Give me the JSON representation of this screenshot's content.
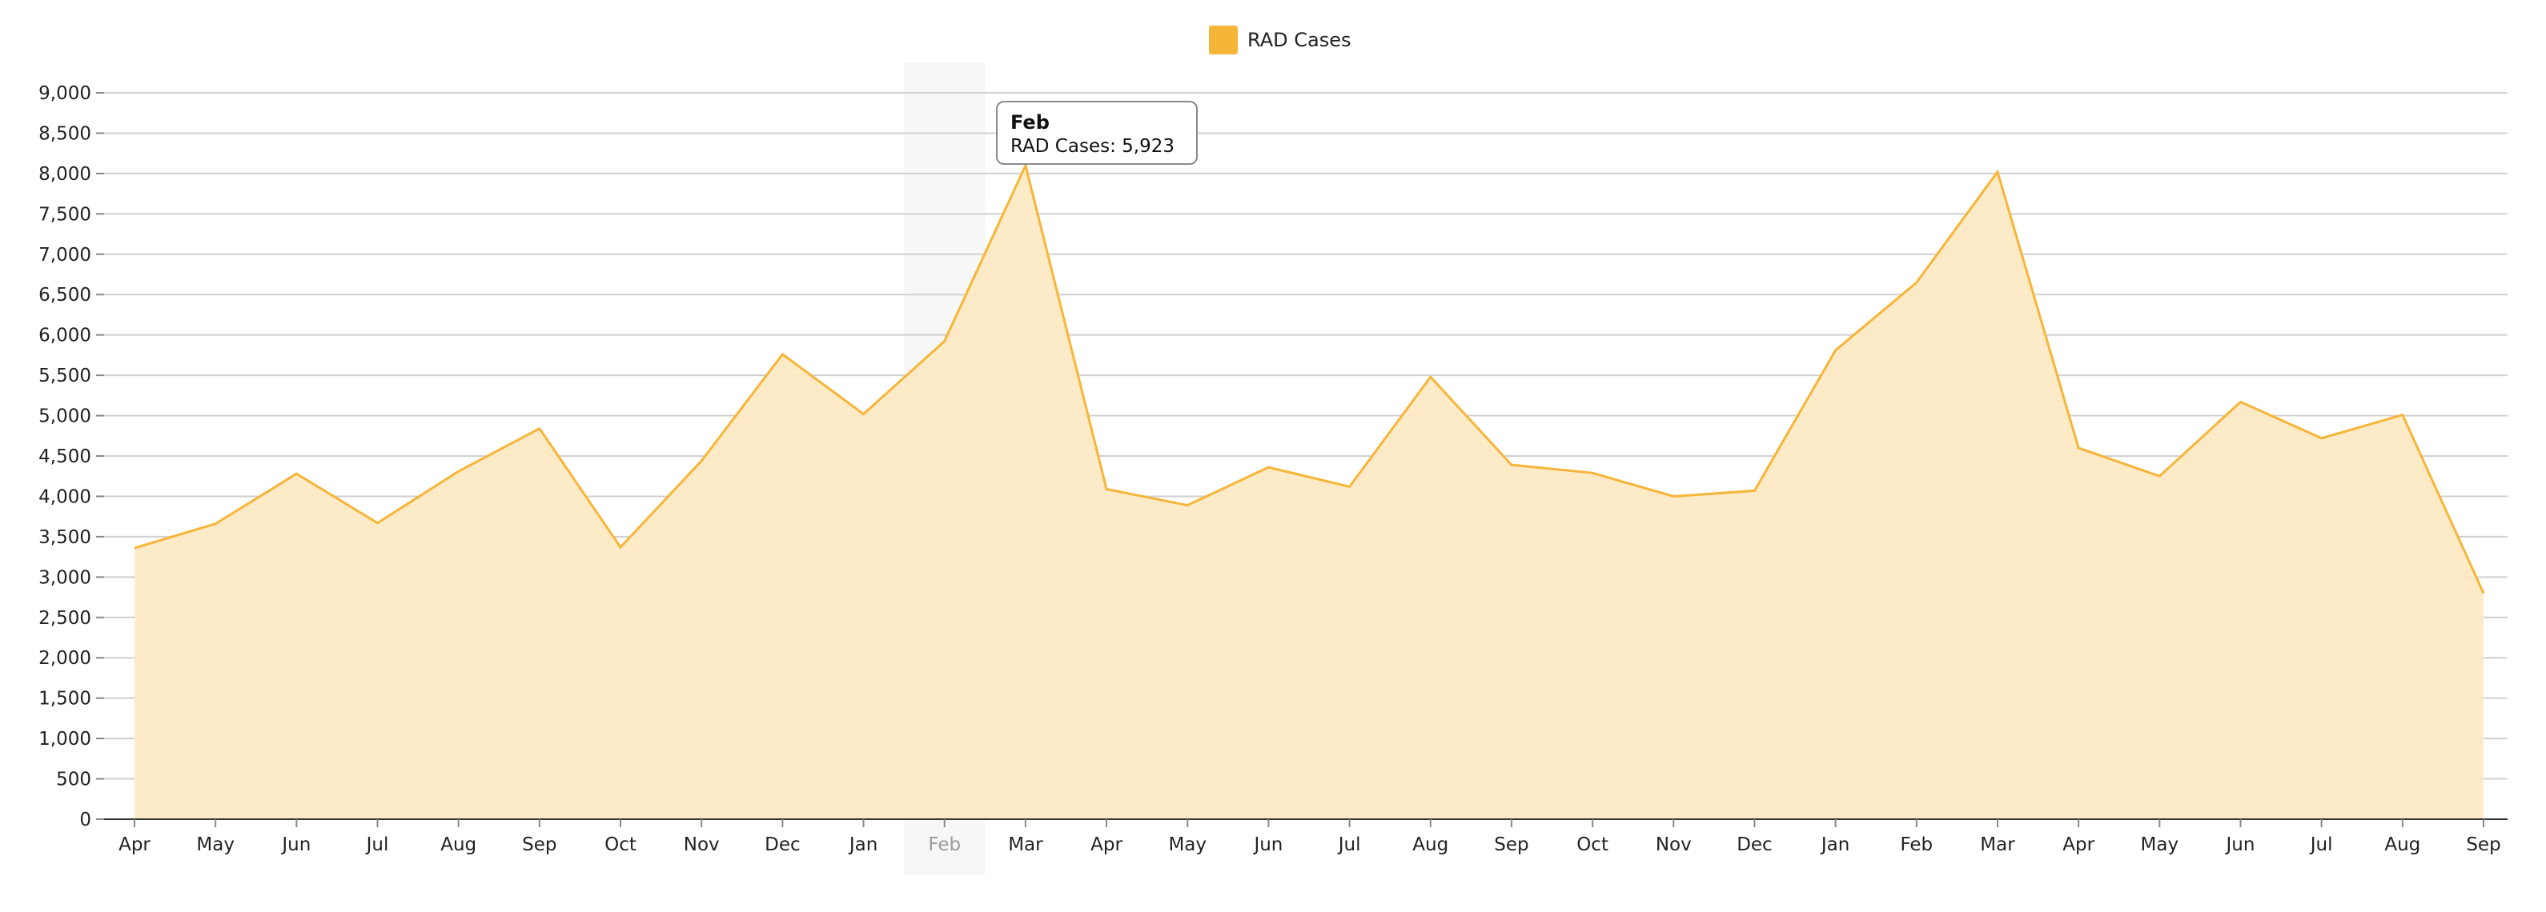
{
  "chart_data": {
    "type": "area",
    "title": "",
    "xlabel": "",
    "ylabel": "",
    "legend": {
      "position": "top-center"
    },
    "series": [
      {
        "name": "RAD Cases",
        "color": "#f7b538",
        "fill_color": "#fde9c4",
        "values": [
          3360,
          3660,
          4280,
          3670,
          4310,
          4840,
          3370,
          4440,
          5760,
          5020,
          5923,
          8100,
          4090,
          3890,
          4360,
          4120,
          5480,
          4390,
          4290,
          4000,
          4070,
          5810,
          6650,
          8020,
          4600,
          4250,
          5170,
          4720,
          5010,
          2800
        ]
      }
    ],
    "categories": [
      "Apr",
      "May",
      "Jun",
      "Jul",
      "Aug",
      "Sep",
      "Oct",
      "Nov",
      "Dec",
      "Jan",
      "Feb",
      "Mar",
      "Apr",
      "May",
      "Jun",
      "Jul",
      "Aug",
      "Sep",
      "Oct",
      "Nov",
      "Dec",
      "Jan",
      "Feb",
      "Mar",
      "Apr",
      "May",
      "Jun",
      "Jul",
      "Aug",
      "Sep"
    ],
    "yticks": [
      "0",
      "500",
      "1,000",
      "1,500",
      "2,000",
      "2,500",
      "3,000",
      "3,500",
      "4,000",
      "4,500",
      "5,000",
      "5,500",
      "6,000",
      "6,500",
      "7,000",
      "7,500",
      "8,000",
      "8,500",
      "9,000"
    ],
    "ylim": [
      0,
      9000
    ],
    "grid": true,
    "highlighted_index": 10,
    "highlight_color": "#f7f7f7",
    "tooltip": {
      "title": "Feb",
      "label": "RAD Cases:",
      "value": "5,923"
    }
  }
}
